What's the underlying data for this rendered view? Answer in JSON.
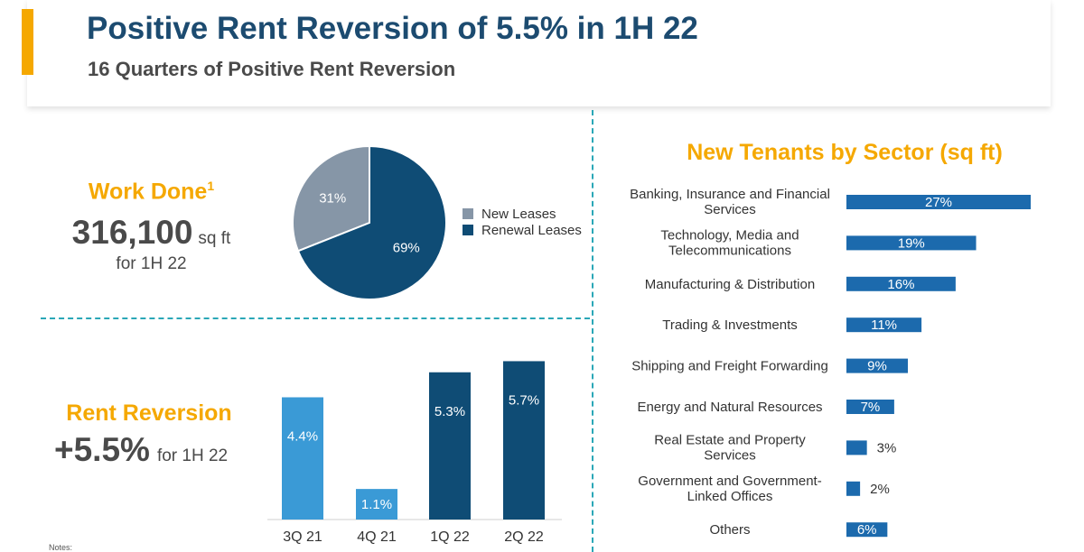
{
  "header": {
    "title": "Positive Rent Reversion of 5.5% in 1H 22",
    "subtitle": "16 Quarters of Positive Rent Reversion"
  },
  "work_done": {
    "title": "Work Done",
    "footnote_mark": "1",
    "value": "316,100",
    "unit": "sq ft",
    "period": "for 1H 22"
  },
  "rent_reversion": {
    "title": "Rent Reversion",
    "value": "+5.5%",
    "period": "for 1H 22"
  },
  "notes": {
    "label": "Notes:"
  },
  "colors": {
    "accent": "#f5a800",
    "navy": "#0f4c75",
    "grey": "#8696a7",
    "light_blue": "#3a9ad6",
    "sector_blue": "#1c6aad",
    "title_blue": "#1c4b70"
  },
  "chart_data": [
    {
      "type": "pie",
      "categories": [
        "New Leases",
        "Renewal Leases"
      ],
      "values": [
        31,
        69
      ],
      "labels": [
        "31%",
        "69%"
      ],
      "colors": [
        "#8696a7",
        "#0f4c75"
      ],
      "legend": "right"
    },
    {
      "type": "bar",
      "categories": [
        "3Q 21",
        "4Q 21",
        "1Q 22",
        "2Q 22"
      ],
      "values": [
        4.4,
        1.1,
        5.3,
        5.7
      ],
      "labels": [
        "4.4%",
        "1.1%",
        "5.3%",
        "5.7%"
      ],
      "colors": [
        "#3a9ad6",
        "#3a9ad6",
        "#0f4c75",
        "#0f4c75"
      ],
      "ylim": [
        0,
        6
      ],
      "grid": false
    },
    {
      "type": "bar",
      "orientation": "horizontal",
      "title": "New Tenants by Sector (sq ft)",
      "categories": [
        [
          "Banking, Insurance and Financial",
          "Services"
        ],
        [
          "Technology, Media and",
          "Telecommunications"
        ],
        [
          "Manufacturing & Distribution"
        ],
        [
          "Trading & Investments"
        ],
        [
          "Shipping and Freight Forwarding"
        ],
        [
          "Energy and Natural Resources"
        ],
        [
          "Real Estate and Property",
          "Services"
        ],
        [
          "Government and Government-",
          "Linked Offices"
        ],
        [
          "Others"
        ]
      ],
      "values": [
        27,
        19,
        16,
        11,
        9,
        7,
        3,
        2,
        6
      ],
      "labels": [
        "27%",
        "19%",
        "16%",
        "11%",
        "9%",
        "7%",
        "3%",
        "2%",
        "6%"
      ],
      "color": "#1c6aad",
      "xlim": [
        0,
        27
      ]
    }
  ]
}
